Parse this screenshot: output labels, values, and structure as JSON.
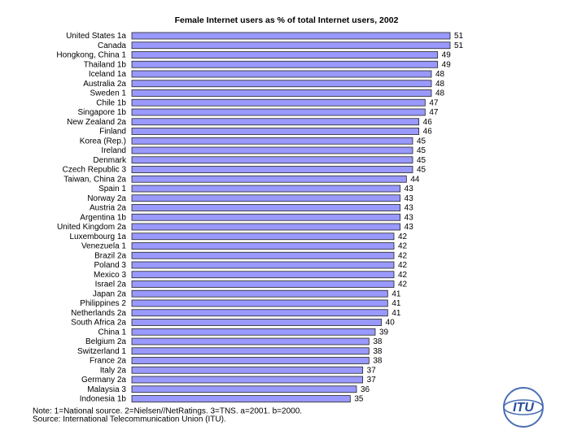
{
  "chart_data": {
    "type": "bar",
    "orientation": "horizontal",
    "title": "Female Internet users as % of total Internet users, 2002",
    "categories": [
      "United States 1a",
      "Canada",
      "Hongkong, China 1",
      "Thailand 1b",
      "Iceland 1a",
      "Australia 2a",
      "Sweden 1",
      "Chile 1b",
      "Singapore 1b",
      "New Zealand 2a",
      "Finland",
      "Korea (Rep.)",
      "Ireland",
      "Denmark",
      "Czech Republic 3",
      "Taiwan, China 2a",
      "Spain 1",
      "Norway 2a",
      "Austria 2a",
      "Argentina 1b",
      "United Kingdom 2a",
      "Luxembourg 1a",
      "Venezuela 1",
      "Brazil 2a",
      "Poland 3",
      "Mexico 3",
      "Israel 2a",
      "Japan 2a",
      "Philippines 2",
      "Netherlands 2a",
      "South Africa 2a",
      "China 1",
      "Belgium 2a",
      "Switzerland 1",
      "France 2a",
      "Italy 2a",
      "Germany 2a",
      "Malaysia 3",
      "Indonesia 1b"
    ],
    "values": [
      51,
      51,
      49,
      49,
      48,
      48,
      48,
      47,
      47,
      46,
      46,
      45,
      45,
      45,
      45,
      44,
      43,
      43,
      43,
      43,
      43,
      42,
      42,
      42,
      42,
      42,
      42,
      41,
      41,
      41,
      40,
      39,
      38,
      38,
      38,
      37,
      37,
      36,
      35
    ],
    "color": "#9999ff",
    "xlim": [
      0,
      51
    ],
    "notes": [
      "Note: 1=National source. 2=Nielsen//NetRatings. 3=TNS. a=2001. b=2000.",
      "Source: International Telecommunication Union (ITU)."
    ],
    "logo": "ITU"
  }
}
